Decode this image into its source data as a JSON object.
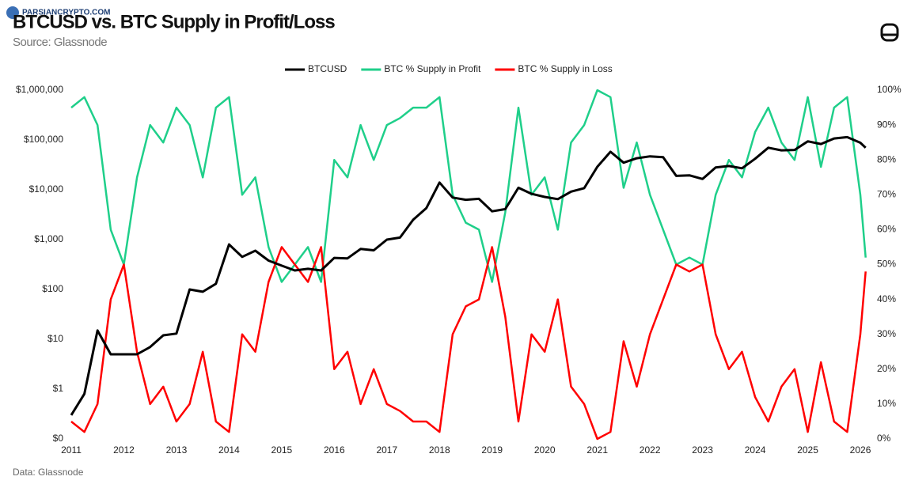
{
  "chart_data": {
    "type": "line",
    "title": "BTCUSD vs. BTC Supply in Profit/Loss",
    "subtitle": "Source: Glassnode",
    "footnote": "Data: Glassnode",
    "watermark": "PARSIANCRYPTO.COM",
    "log_y": true,
    "grid": false,
    "legend": "top",
    "x": [
      2011,
      2011.25,
      2011.5,
      2011.75,
      2012,
      2012.25,
      2012.5,
      2012.75,
      2013,
      2013.25,
      2013.5,
      2013.75,
      2014,
      2014.25,
      2014.5,
      2014.75,
      2015,
      2015.25,
      2015.5,
      2015.75,
      2016,
      2016.25,
      2016.5,
      2016.75,
      2017,
      2017.25,
      2017.5,
      2017.75,
      2018,
      2018.25,
      2018.5,
      2018.75,
      2019,
      2019.25,
      2019.5,
      2019.75,
      2020,
      2020.25,
      2020.5,
      2020.75,
      2021,
      2021.25,
      2021.5,
      2021.75,
      2022,
      2022.25,
      2022.5,
      2022.75,
      2023,
      2023.25,
      2023.5,
      2023.75,
      2024,
      2024.25,
      2024.5,
      2024.75,
      2025,
      2025.25,
      2025.5,
      2025.75,
      2026,
      2026.1
    ],
    "xlim": [
      2011,
      2026.15
    ],
    "xticks": [
      2011,
      2012,
      2013,
      2014,
      2015,
      2016,
      2017,
      2018,
      2019,
      2020,
      2021,
      2022,
      2023,
      2024,
      2025,
      2026
    ],
    "ylim": [
      0.1,
      1000000
    ],
    "yticks": [
      {
        "value": 0.1,
        "label": "$0"
      },
      {
        "value": 1,
        "label": "$1"
      },
      {
        "value": 10,
        "label": "$10"
      },
      {
        "value": 100,
        "label": "$100"
      },
      {
        "value": 1000,
        "label": "$1,000"
      },
      {
        "value": 10000,
        "label": "$10,000"
      },
      {
        "value": 100000,
        "label": "$100,000"
      },
      {
        "value": 1000000,
        "label": "$1,000,000"
      }
    ],
    "y2lim": [
      0,
      100
    ],
    "y2ticks": [
      {
        "value": 0,
        "label": "0%"
      },
      {
        "value": 10,
        "label": "10%"
      },
      {
        "value": 20,
        "label": "20%"
      },
      {
        "value": 30,
        "label": "30%"
      },
      {
        "value": 40,
        "label": "40%"
      },
      {
        "value": 50,
        "label": "50%"
      },
      {
        "value": 60,
        "label": "60%"
      },
      {
        "value": 70,
        "label": "70%"
      },
      {
        "value": 80,
        "label": "80%"
      },
      {
        "value": 90,
        "label": "90%"
      },
      {
        "value": 100,
        "label": "100%"
      }
    ],
    "series": [
      {
        "name": "BTC % Supply in Profit",
        "color": "#1fcf8a",
        "axis": "y2",
        "values": [
          95,
          98,
          90,
          60,
          50,
          75,
          90,
          85,
          95,
          90,
          75,
          95,
          98,
          70,
          75,
          55,
          45,
          50,
          55,
          45,
          80,
          75,
          90,
          80,
          90,
          92,
          95,
          95,
          98,
          70,
          62,
          60,
          45,
          65,
          95,
          70,
          75,
          60,
          85,
          90,
          100,
          98,
          72,
          85,
          70,
          60,
          50,
          52,
          50,
          70,
          80,
          75,
          88,
          95,
          85,
          80,
          98,
          78,
          95,
          98,
          70,
          52
        ]
      },
      {
        "name": "BTC % Supply in Loss",
        "color": "#ff0000",
        "axis": "y2",
        "values": [
          5,
          2,
          10,
          40,
          50,
          25,
          10,
          15,
          5,
          10,
          25,
          5,
          2,
          30,
          25,
          45,
          55,
          50,
          45,
          55,
          20,
          25,
          10,
          20,
          10,
          8,
          5,
          5,
          2,
          30,
          38,
          40,
          55,
          35,
          5,
          30,
          25,
          40,
          15,
          10,
          0,
          2,
          28,
          15,
          30,
          40,
          50,
          48,
          50,
          30,
          20,
          25,
          12,
          5,
          15,
          20,
          2,
          22,
          5,
          2,
          30,
          48
        ]
      },
      {
        "name": "BTCUSD",
        "color": "#000000",
        "values": [
          0.3,
          0.8,
          15,
          5,
          5,
          5,
          7,
          12,
          13,
          100,
          90,
          130,
          800,
          450,
          600,
          380,
          300,
          240,
          260,
          240,
          430,
          420,
          650,
          610,
          1000,
          1100,
          2500,
          4300,
          14000,
          7000,
          6300,
          6600,
          3700,
          4100,
          11000,
          8300,
          7200,
          6500,
          9200,
          10800,
          29000,
          58000,
          35000,
          43000,
          47000,
          45000,
          19000,
          19500,
          16500,
          28000,
          30000,
          27000,
          42000,
          70000,
          62000,
          63000,
          94000,
          83000,
          107000,
          114000,
          88000,
          70000
        ]
      }
    ]
  }
}
